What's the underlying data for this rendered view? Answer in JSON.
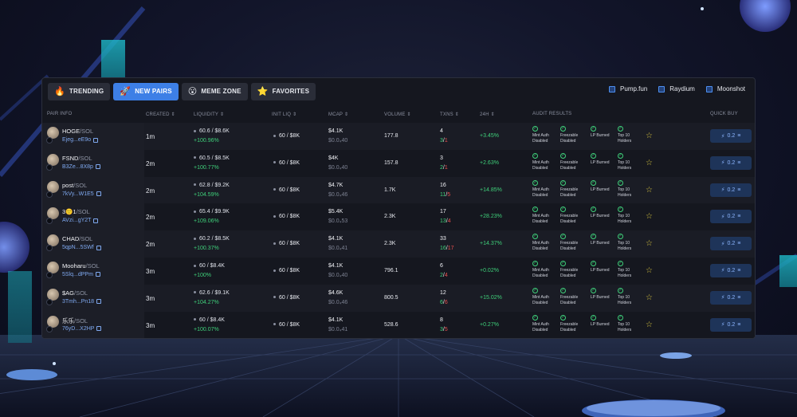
{
  "tabs": [
    {
      "label": "TRENDING",
      "icon": "fire-icon",
      "glyph": "🔥",
      "active": false
    },
    {
      "label": "NEW PAIRS",
      "icon": "rocket-icon",
      "glyph": "🚀",
      "active": true
    },
    {
      "label": "MEME ZONE",
      "icon": "face-icon",
      "glyph": "😮",
      "active": false
    },
    {
      "label": "FAVORITES",
      "icon": "star-icon",
      "glyph": "⭐",
      "active": false
    }
  ],
  "filters": [
    {
      "label": "Pump.fun"
    },
    {
      "label": "Raydium"
    },
    {
      "label": "Moonshot"
    }
  ],
  "columns": {
    "pair_info": "PAIR INFO",
    "created": "CREATED ⇕",
    "liquidity": "LIQUIDITY ⇕",
    "init_liq": "INIT LIQ ⇕",
    "mcap": "MCAP ⇕",
    "volume": "VOLUME ⇕",
    "txns": "TXNS ⇕",
    "change": "24H ⇕",
    "audit": "AUDIT RESULTS",
    "quick_buy": "QUICK BUY"
  },
  "audit_labels": [
    "Mint Auth\nDisabled",
    "Freezable\nDisabled",
    "LP Burned",
    "Top 10\nHolders"
  ],
  "rows": [
    {
      "name": "HOGE",
      "quote": "/SOL",
      "addr": "Ejeg...eE9o",
      "created": "1m",
      "liq": "60.6 / $8.6K",
      "liq_chg": "+100.96%",
      "init": "60 / $8K",
      "mcap": "$4.1K",
      "mcap_sub": "$0.0₄40",
      "vol": "177.8",
      "tx": "4",
      "buys": "3",
      "sells": "1",
      "chg": "+3.45%",
      "buy": "0.2"
    },
    {
      "name": "FSND",
      "quote": "/SOL",
      "addr": "B3Ze...8X8p",
      "created": "2m",
      "liq": "60.5 / $8.5K",
      "liq_chg": "+100.77%",
      "init": "60 / $8K",
      "mcap": "$4K",
      "mcap_sub": "$0.0₄40",
      "vol": "157.8",
      "tx": "3",
      "buys": "2",
      "sells": "1",
      "chg": "+2.63%",
      "buy": "0.2"
    },
    {
      "name": "post",
      "quote": "/SOL",
      "addr": "7kVy...W1E5",
      "created": "2m",
      "liq": "62.8 / $9.2K",
      "liq_chg": "+104.59%",
      "init": "60 / $8K",
      "mcap": "$4.7K",
      "mcap_sub": "$0.0₄46",
      "vol": "1.7K",
      "tx": "16",
      "buys": "11",
      "sells": "5",
      "chg": "+14.85%",
      "buy": "0.2"
    },
    {
      "name": "3🙂1",
      "quote": "/SOL",
      "addr": "AVzi...gY2T",
      "created": "2m",
      "liq": "65.4 / $9.9K",
      "liq_chg": "+109.06%",
      "init": "60 / $8K",
      "mcap": "$5.4K",
      "mcap_sub": "$0.0₄53",
      "vol": "2.3K",
      "tx": "17",
      "buys": "13",
      "sells": "4",
      "chg": "+28.23%",
      "buy": "0.2"
    },
    {
      "name": "CHAD",
      "quote": "/SOL",
      "addr": "5qpN...5SWf",
      "created": "2m",
      "liq": "60.2 / $8.5K",
      "liq_chg": "+100.37%",
      "init": "60 / $8K",
      "mcap": "$4.1K",
      "mcap_sub": "$0.0₄41",
      "vol": "2.3K",
      "tx": "33",
      "buys": "16",
      "sells": "17",
      "chg": "+14.37%",
      "buy": "0.2"
    },
    {
      "name": "Mooharu",
      "quote": "/SOL",
      "addr": "5Slq...dPPm",
      "created": "3m",
      "liq": "60 / $8.4K",
      "liq_chg": "+100%",
      "init": "60 / $8K",
      "mcap": "$4.1K",
      "mcap_sub": "$0.0₄40",
      "vol": "796.1",
      "tx": "6",
      "buys": "2",
      "sells": "4",
      "chg": "+0.02%",
      "buy": "0.2"
    },
    {
      "name": "$AG",
      "quote": "/SOL",
      "addr": "3Tmh...Pn18",
      "created": "3m",
      "liq": "62.6 / $9.1K",
      "liq_chg": "+104.27%",
      "init": "60 / $8K",
      "mcap": "$4.6K",
      "mcap_sub": "$0.0₄46",
      "vol": "800.5",
      "tx": "12",
      "buys": "6",
      "sells": "6",
      "chg": "+15.02%",
      "buy": "0.2"
    },
    {
      "name": "乐乐",
      "quote": "/SOL",
      "addr": "76yD...X2HP",
      "created": "3m",
      "liq": "60 / $8.4K",
      "liq_chg": "+100.07%",
      "init": "60 / $8K",
      "mcap": "$4.1K",
      "mcap_sub": "$0.0₄41",
      "vol": "528.6",
      "tx": "8",
      "buys": "3",
      "sells": "5",
      "chg": "+0.27%",
      "buy": "0.2"
    }
  ]
}
